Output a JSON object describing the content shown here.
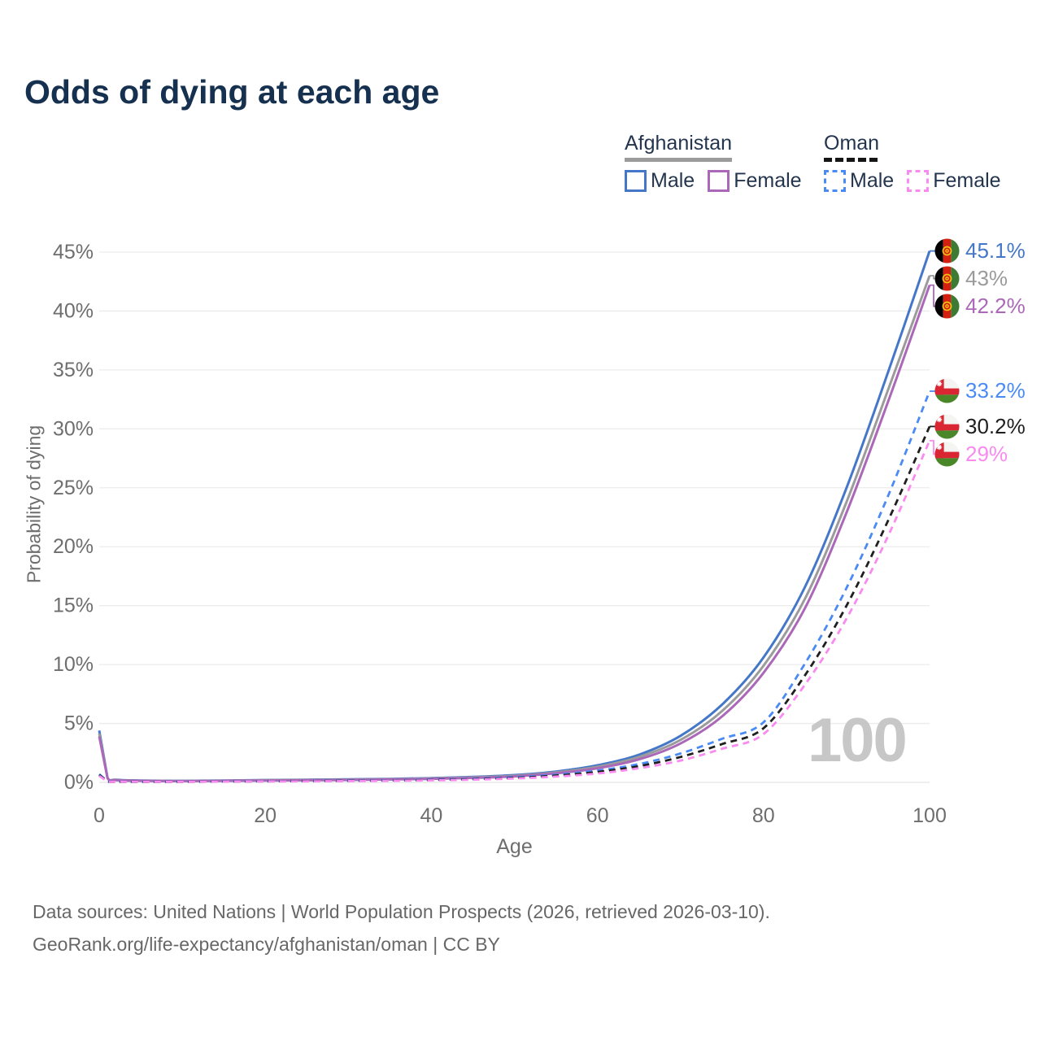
{
  "title": "Odds of dying at each age",
  "legend": {
    "groups": [
      {
        "name": "Afghanistan",
        "line_style": "solid",
        "line_color": "#9b9b9b",
        "items": [
          {
            "label": "Male"
          },
          {
            "label": "Female"
          }
        ]
      },
      {
        "name": "Oman",
        "line_style": "dashed",
        "line_color": "#151515",
        "items": [
          {
            "label": "Male"
          },
          {
            "label": "Female"
          }
        ]
      }
    ]
  },
  "watermark": "100",
  "footer": {
    "line1": "Data sources: United Nations | World Population Prospects (2026, retrieved 2026-03-10).",
    "line2": "GeoRank.org/life-expectancy/afghanistan/oman | CC BY"
  },
  "chart_data": {
    "type": "line",
    "title": "Odds of dying at each age",
    "xlabel": "Age",
    "ylabel": "Probability of dying",
    "xlim": [
      0,
      100
    ],
    "ylim": [
      0,
      45
    ],
    "x_ticks": [
      0,
      20,
      40,
      60,
      80,
      100
    ],
    "y_ticks": [
      0,
      5,
      10,
      15,
      20,
      25,
      30,
      35,
      40,
      45
    ],
    "y_tick_suffix": "%",
    "grid": "horizontal",
    "legend_position": "top-right",
    "ages": [
      0,
      1,
      2,
      5,
      10,
      15,
      20,
      25,
      30,
      35,
      40,
      45,
      50,
      55,
      60,
      65,
      70,
      75,
      80,
      85,
      90,
      95,
      100
    ],
    "series": [
      {
        "name": "Afghanistan Male",
        "country": "Afghanistan",
        "sex": "Male",
        "color": "#4577c9",
        "dash": false,
        "end_label": "45.1%",
        "end_value": 45.1,
        "values": [
          4.4,
          0.4,
          0.22,
          0.15,
          0.13,
          0.16,
          0.2,
          0.23,
          0.26,
          0.3,
          0.36,
          0.46,
          0.62,
          0.92,
          1.45,
          2.35,
          3.95,
          6.6,
          10.6,
          16.6,
          25,
          34.8,
          45.1
        ]
      },
      {
        "name": "Afghanistan Both sexes",
        "country": "Afghanistan",
        "sex": "Both",
        "color": "#9b9b9b",
        "dash": false,
        "end_label": "43%",
        "end_value": 43,
        "values": [
          4.15,
          0.38,
          0.2,
          0.14,
          0.12,
          0.14,
          0.18,
          0.21,
          0.23,
          0.27,
          0.33,
          0.42,
          0.56,
          0.84,
          1.32,
          2.15,
          3.6,
          6.05,
          9.9,
          15.6,
          23.8,
          33.3,
          43
        ]
      },
      {
        "name": "Afghanistan Female",
        "country": "Afghanistan",
        "sex": "Female",
        "color": "#ab68b8",
        "dash": false,
        "end_label": "42.2%",
        "end_value": 42.2,
        "values": [
          3.9,
          0.36,
          0.19,
          0.13,
          0.11,
          0.13,
          0.16,
          0.18,
          0.21,
          0.25,
          0.3,
          0.38,
          0.51,
          0.77,
          1.2,
          1.95,
          3.3,
          5.6,
          9.3,
          14.8,
          22.9,
          32.3,
          42.2
        ]
      },
      {
        "name": "Oman Male",
        "country": "Oman",
        "sex": "Male",
        "color": "#4a8af5",
        "dash": true,
        "end_label": "33.2%",
        "end_value": 33.2,
        "values": [
          0.7,
          0.09,
          0.06,
          0.05,
          0.06,
          0.08,
          0.1,
          0.12,
          0.15,
          0.18,
          0.23,
          0.31,
          0.44,
          0.65,
          1,
          1.55,
          2.45,
          3.7,
          5.1,
          10.1,
          16.5,
          24.3,
          33.2
        ]
      },
      {
        "name": "Oman Both sexes",
        "country": "Oman",
        "sex": "Both",
        "color": "#1f1f1f",
        "dash": true,
        "end_label": "30.2%",
        "end_value": 30.2,
        "values": [
          0.62,
          0.08,
          0.05,
          0.045,
          0.05,
          0.07,
          0.09,
          0.11,
          0.13,
          0.16,
          0.2,
          0.27,
          0.38,
          0.57,
          0.88,
          1.38,
          2.15,
          3.25,
          4.6,
          9.1,
          15,
          22.2,
          30.2
        ]
      },
      {
        "name": "Oman Female",
        "country": "Oman",
        "sex": "Female",
        "color": "#f98af0",
        "dash": true,
        "end_label": "29%",
        "end_value": 29,
        "values": [
          0.55,
          0.07,
          0.05,
          0.04,
          0.045,
          0.06,
          0.08,
          0.09,
          0.11,
          0.14,
          0.17,
          0.23,
          0.33,
          0.49,
          0.75,
          1.2,
          1.85,
          2.85,
          4.1,
          8.3,
          13.9,
          20.9,
          29
        ]
      }
    ]
  }
}
